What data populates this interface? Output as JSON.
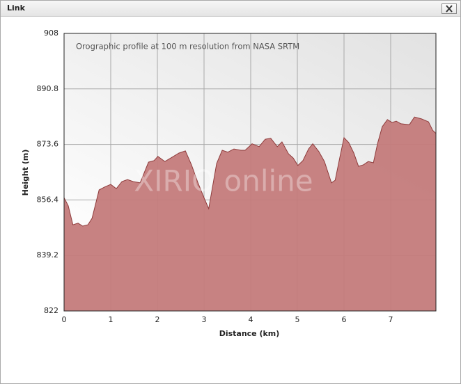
{
  "window": {
    "title": "Link"
  },
  "chart_data": {
    "type": "area",
    "annotation": "Orographic profile at 100 m resolution from NASA SRTM",
    "watermark": "XIRIO online",
    "xlabel": "Distance (km)",
    "ylabel": "Height (m)",
    "x": [
      0,
      0.09,
      0.19,
      0.3,
      0.4,
      0.51,
      0.6,
      0.75,
      0.87,
      1.0,
      1.12,
      1.24,
      1.36,
      1.48,
      1.63,
      1.81,
      1.93,
      2.01,
      2.16,
      2.31,
      2.46,
      2.6,
      2.73,
      2.87,
      3.01,
      3.1,
      3.27,
      3.39,
      3.51,
      3.64,
      3.79,
      3.88,
      4.03,
      4.18,
      4.31,
      4.43,
      4.57,
      4.67,
      4.81,
      4.91,
      5.01,
      5.12,
      5.24,
      5.33,
      5.46,
      5.58,
      5.73,
      5.81,
      5.91,
      6.0,
      6.1,
      6.21,
      6.31,
      6.42,
      6.52,
      6.63,
      6.72,
      6.82,
      6.93,
      7.03,
      7.12,
      7.22,
      7.4,
      7.51,
      7.66,
      7.81,
      7.9,
      7.97
    ],
    "values": [
      857.1,
      854.6,
      848.7,
      849.2,
      848.3,
      848.7,
      850.7,
      859.5,
      860.4,
      861.2,
      859.9,
      862.1,
      862.7,
      862.1,
      861.7,
      868.1,
      868.6,
      869.9,
      868.3,
      869.6,
      870.9,
      871.6,
      867.3,
      861.7,
      856.7,
      853.7,
      867.7,
      871.8,
      871.2,
      872.2,
      871.8,
      871.8,
      873.8,
      872.9,
      875.2,
      875.5,
      872.9,
      874.4,
      870.7,
      869.4,
      867.1,
      868.6,
      872.2,
      873.8,
      871.4,
      868.3,
      861.7,
      862.5,
      869.6,
      875.7,
      874.2,
      870.9,
      866.8,
      867.3,
      868.3,
      867.9,
      873.9,
      879.1,
      881.3,
      880.4,
      880.8,
      880.0,
      879.7,
      882.1,
      881.5,
      880.6,
      878.0,
      877.0
    ],
    "color": "#c47b7b",
    "line_color": "#8e3b3b",
    "xlim": [
      0,
      7.97
    ],
    "xticks": [
      0,
      1,
      2,
      3,
      4,
      5,
      6,
      7
    ],
    "ylim": [
      822,
      908
    ],
    "yticks": [
      822,
      839.2,
      856.4,
      873.6,
      890.8,
      908
    ],
    "grid": true
  }
}
